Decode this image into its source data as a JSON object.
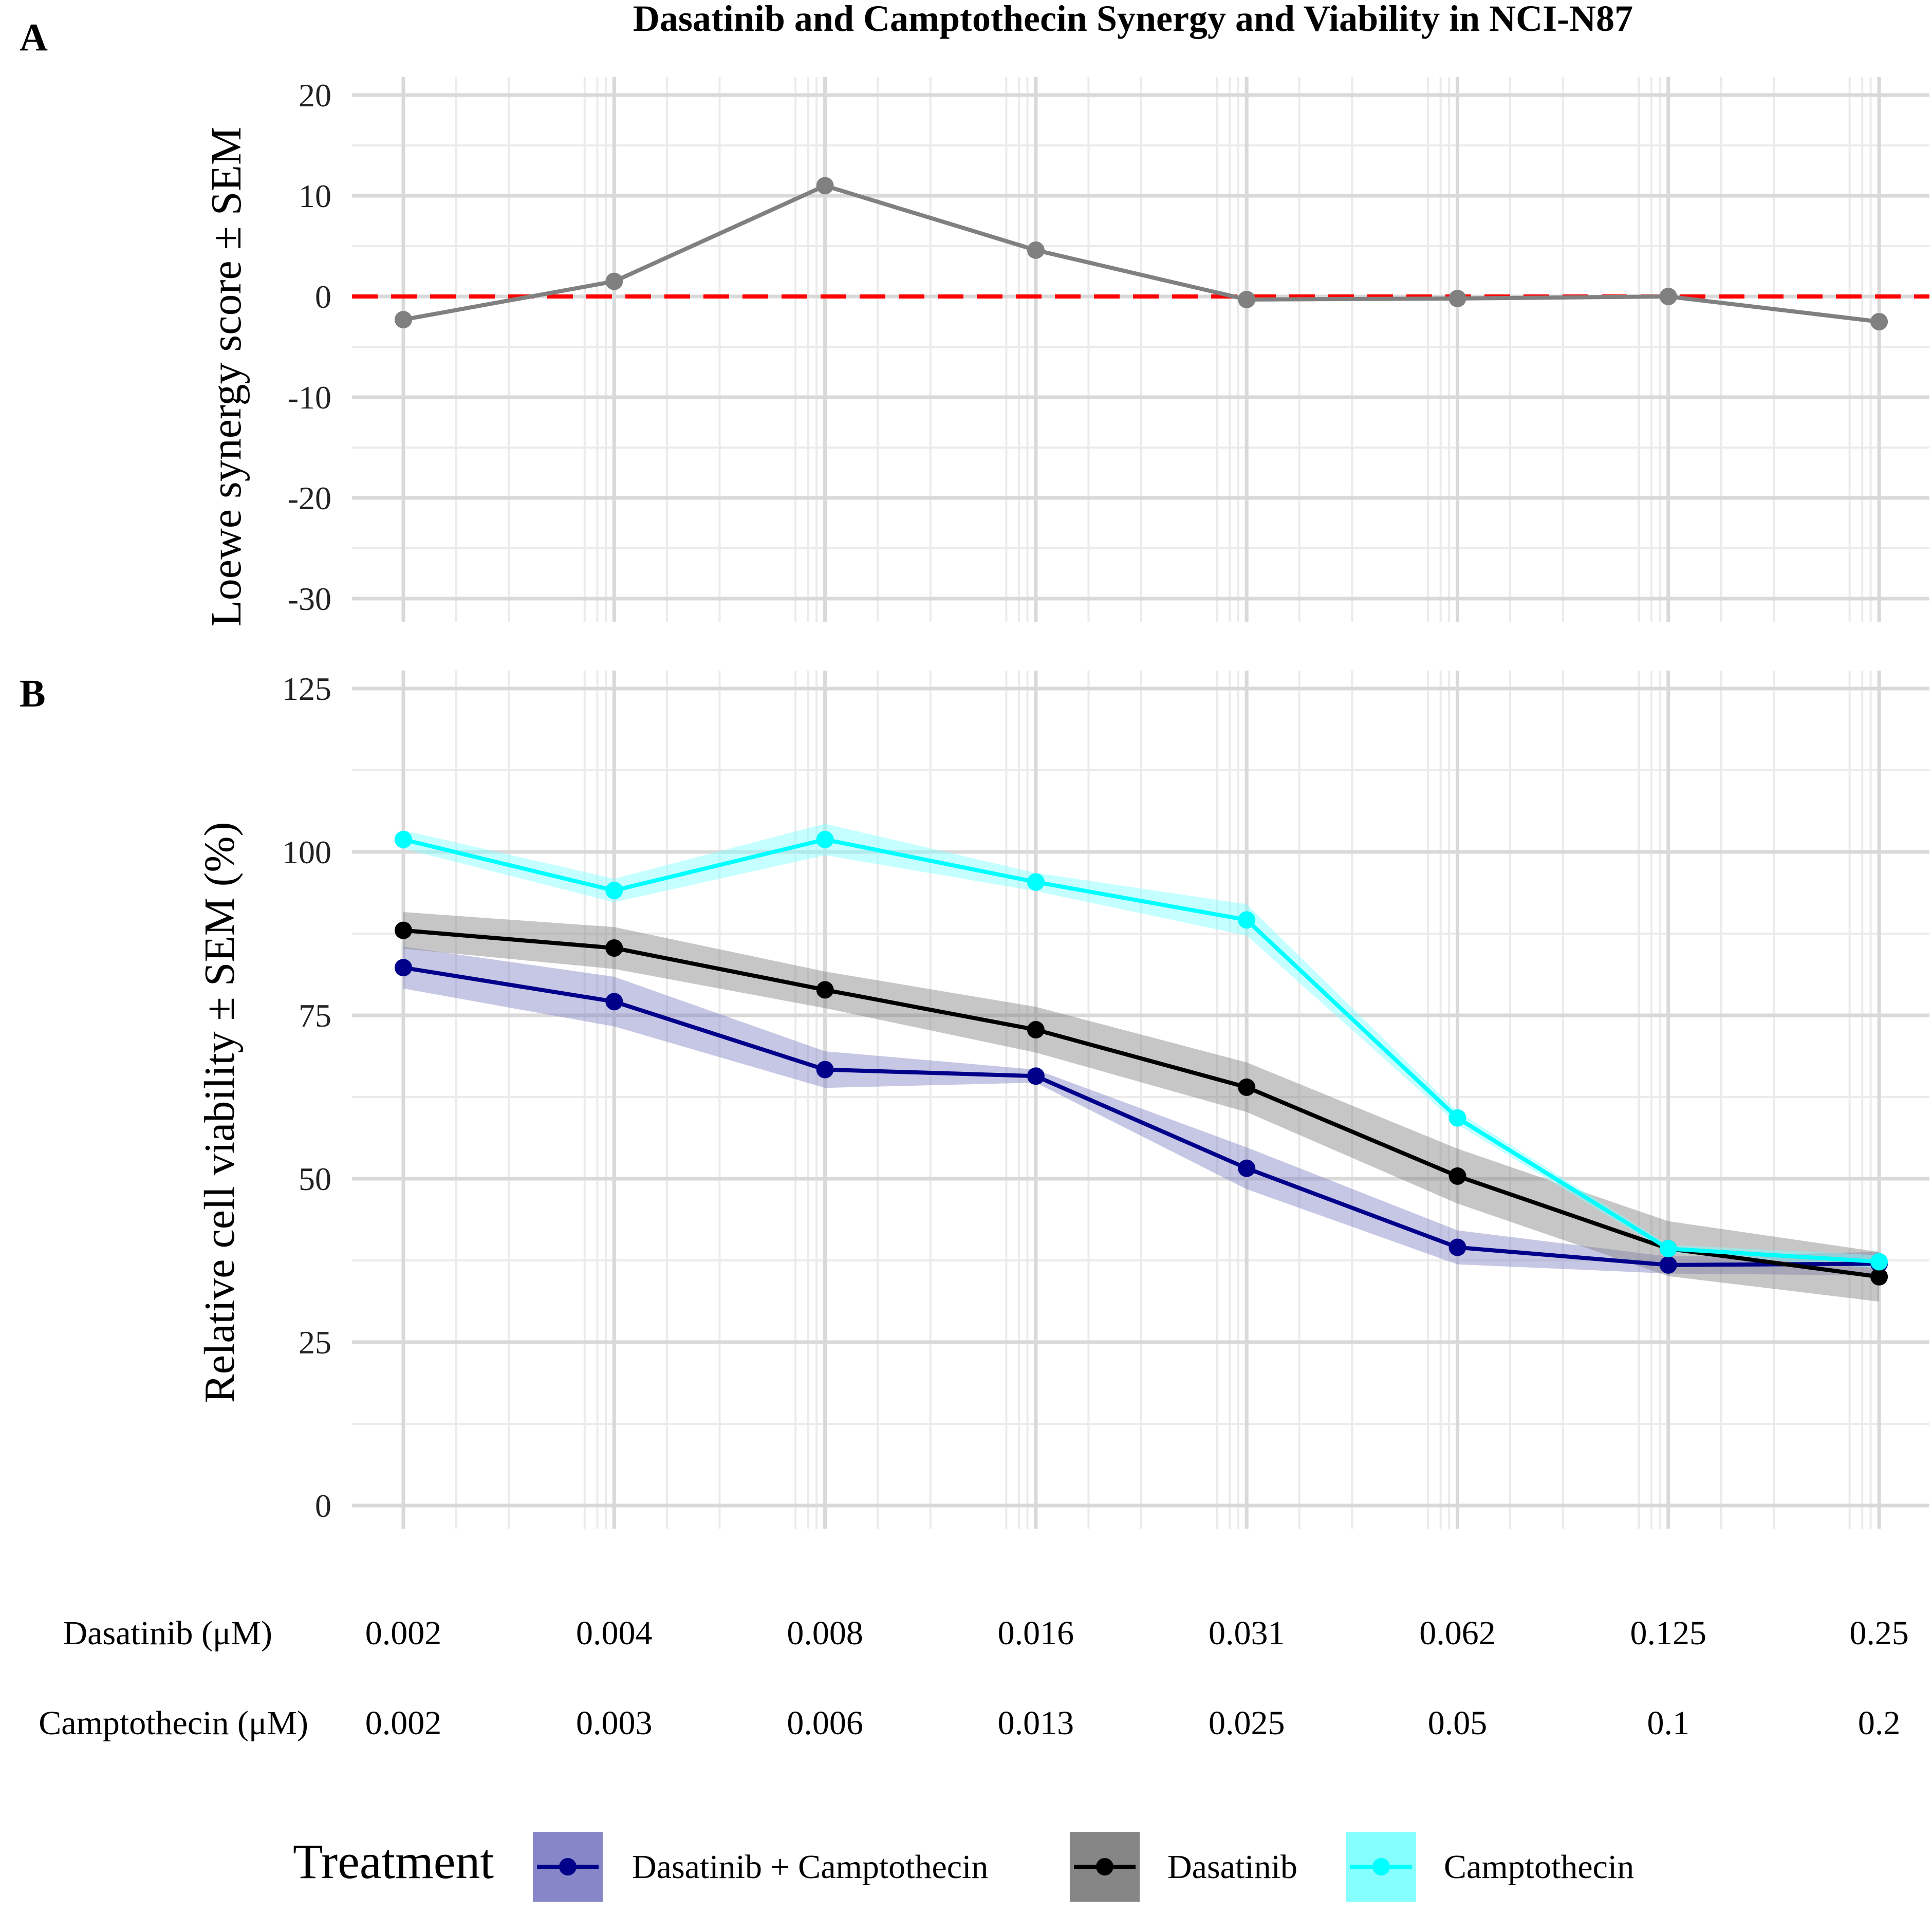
{
  "title": "Dasatinib and Camptothecin Synergy and Viability in NCI-N87",
  "dose_axis": {
    "rows": [
      {
        "label": "Dasatinib (μM)",
        "values": [
          "0.002",
          "0.004",
          "0.008",
          "0.016",
          "0.031",
          "0.062",
          "0.125",
          "0.25"
        ]
      },
      {
        "label": "Camptothecin (μM)",
        "values": [
          "0.002",
          "0.003",
          "0.006",
          "0.013",
          "0.025",
          "0.05",
          "0.1",
          "0.2"
        ]
      }
    ]
  },
  "legend": {
    "title": "Treatment",
    "items": [
      {
        "label": "Dasatinib + Camptothecin",
        "color": "#00008B",
        "fill": "#8080C5"
      },
      {
        "label": "Dasatinib",
        "color": "#000000",
        "fill": "#808080"
      },
      {
        "label": "Camptothecin",
        "color": "#00FFFF",
        "fill": "#80FFFF"
      }
    ]
  },
  "chart_data": [
    {
      "panel": "A",
      "type": "line",
      "ylabel": "Loewe synergy score ± SEM",
      "ylim": [
        -35,
        22
      ],
      "yticks": [
        -30,
        -20,
        -10,
        0,
        10,
        20
      ],
      "reference_line": {
        "y": 0,
        "color": "#FF0000",
        "style": "dashed"
      },
      "x": [
        1,
        2,
        3,
        4,
        5,
        6,
        7,
        8
      ],
      "series": [
        {
          "color": "#808080",
          "values": [
            -2.3,
            1.5,
            11.0,
            4.6,
            -0.3,
            -0.2,
            0.0,
            -2.5
          ]
        }
      ]
    },
    {
      "panel": "B",
      "type": "line",
      "ylabel": "Relative cell viability ± SEM (%)",
      "ylim": [
        -6,
        125
      ],
      "yticks": [
        0,
        25,
        50,
        75,
        100,
        125
      ],
      "x": [
        1,
        2,
        3,
        4,
        5,
        6,
        7,
        8
      ],
      "series": [
        {
          "name": "Dasatinib + Camptothecin",
          "color": "#00008B",
          "fill": "#8080C5",
          "values": [
            82.3,
            77.1,
            66.7,
            65.7,
            51.6,
            39.5,
            36.8,
            37.0
          ],
          "sem": [
            3.2,
            3.8,
            2.8,
            1.0,
            3.2,
            2.6,
            1.3,
            1.8
          ]
        },
        {
          "name": "Dasatinib",
          "color": "#000000",
          "fill": "#808080",
          "values": [
            88.0,
            85.3,
            78.9,
            72.8,
            64.0,
            50.4,
            39.3,
            35.0
          ],
          "sem": [
            2.8,
            3.2,
            2.8,
            3.5,
            3.8,
            4.2,
            4.2,
            3.8
          ]
        },
        {
          "name": "Camptothecin",
          "color": "#00FFFF",
          "fill": "#80FFFF",
          "values": [
            101.9,
            94.1,
            101.9,
            95.4,
            89.6,
            59.3,
            39.3,
            37.3
          ],
          "sem": [
            1.4,
            1.8,
            2.4,
            1.4,
            2.4,
            1.0,
            0.6,
            1.0
          ]
        }
      ]
    }
  ]
}
